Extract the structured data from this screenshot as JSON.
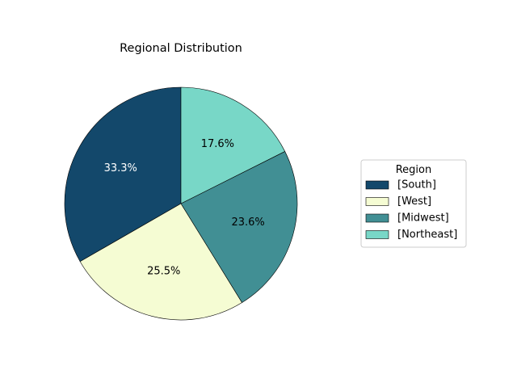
{
  "chart_data": {
    "type": "pie",
    "title": "Regional Distribution",
    "categories": [
      "[South]",
      "[West]",
      "[Midwest]",
      "[Northeast]"
    ],
    "values": [
      33.3,
      25.5,
      23.6,
      17.6
    ],
    "value_labels": [
      "33.3%",
      "25.5%",
      "23.6%",
      "17.6%"
    ],
    "colors": [
      "#13486b",
      "#f5fcd3",
      "#418f94",
      "#78d7c7"
    ],
    "label_colors": [
      "#ffffff",
      "#000000",
      "#000000",
      "#000000"
    ],
    "start_angle_deg": 90,
    "direction": "counterclockwise",
    "legend": {
      "title": "Region",
      "placement": "right",
      "entries": [
        "[South]",
        "[West]",
        "[Midwest]",
        "[Northeast]"
      ]
    }
  }
}
